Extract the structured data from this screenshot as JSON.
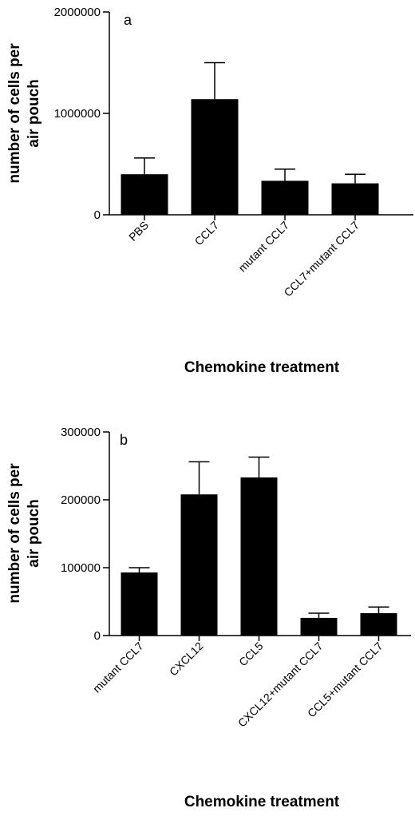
{
  "chart_data": [
    {
      "type": "bar",
      "panel_label": "a",
      "categories": [
        "PBS",
        "CCL7",
        "mutant CCL7",
        "CCL7+mutant CCL7"
      ],
      "values": [
        400000,
        1140000,
        335000,
        310000
      ],
      "error_upper": [
        160000,
        360000,
        115000,
        90000
      ],
      "ylim": [
        0,
        2000000
      ],
      "yticks": [
        0,
        1000000,
        2000000
      ],
      "ylabel_lines": [
        "number of cells per",
        "air pouch"
      ],
      "xlabel": "Chemokine treatment",
      "bar_color": "#000000"
    },
    {
      "type": "bar",
      "panel_label": "b",
      "categories": [
        "mutant CCL7",
        "CXCL12",
        "CCL5",
        "CXCL12+mutant CCL7",
        "CCL5+mutant CCL7"
      ],
      "values": [
        93000,
        208000,
        233000,
        26000,
        33000
      ],
      "error_upper": [
        7000,
        48000,
        30000,
        7000,
        9000
      ],
      "ylim": [
        0,
        300000
      ],
      "yticks": [
        0,
        100000,
        200000,
        300000
      ],
      "ylabel_lines": [
        "number of cells per",
        "air pouch"
      ],
      "xlabel": "Chemokine treatment",
      "bar_color": "#000000"
    }
  ]
}
